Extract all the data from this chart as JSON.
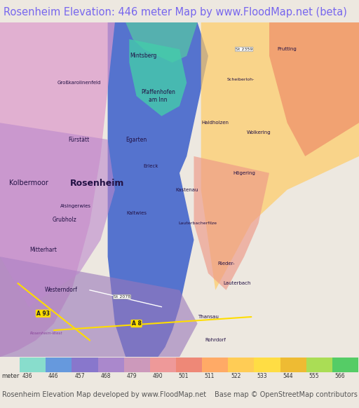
{
  "title": "Rosenheim Elevation: 446 meter Map by www.FloodMap.net (beta)",
  "title_color": "#7766ee",
  "title_fontsize": 10.5,
  "title_bg": "#ede8e0",
  "bottom_bg": "#ede8e0",
  "footer_left": "Rosenheim Elevation Map developed by www.FloodMap.net",
  "footer_right": "Base map © OpenStreetMap contributors",
  "footer_fontsize": 7,
  "footer_color": "#555555",
  "legend_label": "meter",
  "legend_values": [
    436,
    446,
    457,
    468,
    479,
    490,
    501,
    511,
    522,
    533,
    544,
    555,
    566
  ],
  "legend_colors": [
    "#88ddcc",
    "#6699dd",
    "#8877cc",
    "#aa88cc",
    "#cc99bb",
    "#ee9999",
    "#ee8877",
    "#ffaa66",
    "#ffcc55",
    "#ffdd44",
    "#eebb33",
    "#aadd55",
    "#55cc66"
  ],
  "fig_width": 5.12,
  "fig_height": 5.82,
  "dpi": 100
}
